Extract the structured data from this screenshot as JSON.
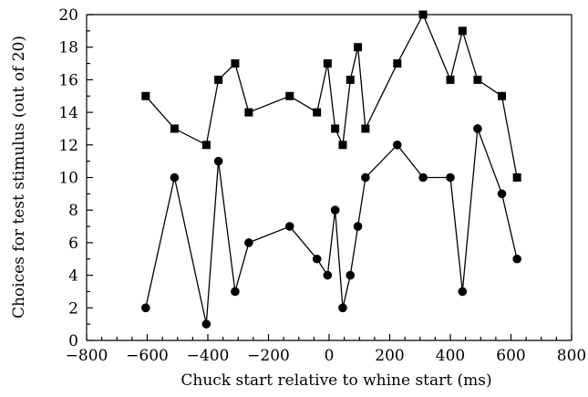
{
  "chart_data": {
    "type": "line",
    "title": "",
    "xlabel": "Chuck start relative to whine start (ms)",
    "ylabel": "Choices for test stimulus (out of 20)",
    "xlim": [
      -800,
      800
    ],
    "ylim": [
      0,
      20
    ],
    "x_ticks": [
      -800,
      -600,
      -400,
      -200,
      0,
      200,
      400,
      600,
      800
    ],
    "x_tick_labels": [
      "−800",
      "−600",
      "−400",
      "−200",
      "0",
      "200",
      "400",
      "600",
      "800"
    ],
    "x_minor_step": 50,
    "y_ticks": [
      0,
      2,
      4,
      6,
      8,
      10,
      12,
      14,
      16,
      18,
      20
    ],
    "y_tick_labels": [
      "0",
      "2",
      "4",
      "6",
      "8",
      "10",
      "12",
      "14",
      "16",
      "18",
      "20"
    ],
    "y_minor_step": 1,
    "grid": false,
    "series": [
      {
        "marker": "square",
        "color": "#000000",
        "points": [
          {
            "x": -605,
            "y": 15
          },
          {
            "x": -510,
            "y": 13
          },
          {
            "x": -405,
            "y": 12
          },
          {
            "x": -365,
            "y": 16
          },
          {
            "x": -310,
            "y": 17
          },
          {
            "x": -265,
            "y": 14
          },
          {
            "x": -130,
            "y": 15
          },
          {
            "x": -40,
            "y": 14
          },
          {
            "x": -5,
            "y": 17
          },
          {
            "x": 20,
            "y": 13
          },
          {
            "x": 45,
            "y": 12
          },
          {
            "x": 70,
            "y": 16
          },
          {
            "x": 95,
            "y": 18
          },
          {
            "x": 120,
            "y": 13
          },
          {
            "x": 225,
            "y": 17
          },
          {
            "x": 310,
            "y": 20
          },
          {
            "x": 400,
            "y": 16
          },
          {
            "x": 440,
            "y": 19
          },
          {
            "x": 490,
            "y": 16
          },
          {
            "x": 570,
            "y": 15
          },
          {
            "x": 620,
            "y": 10
          }
        ]
      },
      {
        "marker": "circle",
        "color": "#000000",
        "points": [
          {
            "x": -605,
            "y": 2
          },
          {
            "x": -510,
            "y": 10
          },
          {
            "x": -405,
            "y": 1
          },
          {
            "x": -365,
            "y": 11
          },
          {
            "x": -310,
            "y": 3
          },
          {
            "x": -265,
            "y": 6
          },
          {
            "x": -130,
            "y": 7
          },
          {
            "x": -40,
            "y": 5
          },
          {
            "x": -5,
            "y": 4
          },
          {
            "x": 20,
            "y": 8
          },
          {
            "x": 45,
            "y": 2
          },
          {
            "x": 70,
            "y": 4
          },
          {
            "x": 95,
            "y": 7
          },
          {
            "x": 120,
            "y": 10
          },
          {
            "x": 225,
            "y": 12
          },
          {
            "x": 310,
            "y": 10
          },
          {
            "x": 400,
            "y": 10
          },
          {
            "x": 440,
            "y": 3
          },
          {
            "x": 490,
            "y": 13
          },
          {
            "x": 570,
            "y": 9
          },
          {
            "x": 620,
            "y": 5
          }
        ]
      }
    ]
  }
}
